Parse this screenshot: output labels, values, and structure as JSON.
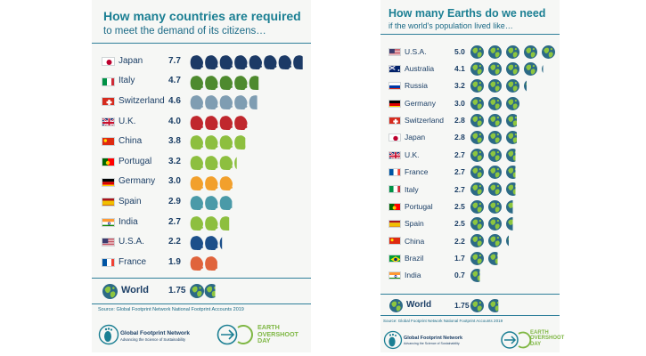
{
  "colors": {
    "title": "#1b7f93",
    "text": "#1c3f66",
    "earth_ocean": "#2c6a86",
    "earth_land": "#8dc63f",
    "teal": "#1b7f93",
    "green": "#7fb744"
  },
  "chart_data": [
    {
      "type": "bar",
      "title": "How many countries are required",
      "subtitle": "to meet the demand of its citizens…",
      "unit": "countries",
      "categories": [
        "Japan",
        "Italy",
        "Switzerland",
        "U.K.",
        "China",
        "Portugal",
        "Germany",
        "Spain",
        "India",
        "U.S.A.",
        "France"
      ],
      "values": [
        7.7,
        4.7,
        4.6,
        4.0,
        3.8,
        3.2,
        3.0,
        2.9,
        2.7,
        2.2,
        1.9
      ],
      "value_labels": [
        "7.7",
        "4.7",
        "4.6",
        "4.0",
        "3.8",
        "3.2",
        "3.0",
        "2.9",
        "2.7",
        "2.2",
        "1.9"
      ],
      "icon_colors": [
        "#1c3a66",
        "#4e8a2e",
        "#7f9db2",
        "#c0272d",
        "#8dbf3f",
        "#8dbf3f",
        "#f2a02c",
        "#4a9aa8",
        "#8dbf3f",
        "#1c4f8a",
        "#e0643c"
      ],
      "flags": [
        "japan-flag",
        "italy-flag",
        "switzerland-flag",
        "uk-flag",
        "china-flag",
        "portugal-flag",
        "germany-flag",
        "spain-flag",
        "india-flag",
        "usa-flag",
        "france-flag"
      ],
      "world": {
        "label": "World",
        "value": 1.75,
        "value_label": "1.75"
      },
      "source": "Source: Global Footprint Network National Footprint Accounts 2019"
    },
    {
      "type": "bar",
      "title": "How many Earths do we need",
      "subtitle": "if the world's population lived like…",
      "unit": "Earths",
      "categories": [
        "U.S.A.",
        "Australia",
        "Russia",
        "Germany",
        "Switzerland",
        "Japan",
        "U.K.",
        "France",
        "Italy",
        "Portugal",
        "Spain",
        "China",
        "Brazil",
        "India"
      ],
      "values": [
        5.0,
        4.1,
        3.2,
        3.0,
        2.8,
        2.8,
        2.7,
        2.7,
        2.7,
        2.5,
        2.5,
        2.2,
        1.7,
        0.7
      ],
      "value_labels": [
        "5.0",
        "4.1",
        "3.2",
        "3.0",
        "2.8",
        "2.8",
        "2.7",
        "2.7",
        "2.7",
        "2.5",
        "2.5",
        "2.2",
        "1.7",
        "0.7"
      ],
      "flags": [
        "usa-flag",
        "australia-flag",
        "russia-flag",
        "germany-flag",
        "switzerland-flag",
        "japan-flag",
        "uk-flag",
        "france-flag",
        "italy-flag",
        "portugal-flag",
        "spain-flag",
        "china-flag",
        "brazil-flag",
        "india-flag"
      ],
      "world": {
        "label": "World",
        "value": 1.75,
        "value_label": "1.75"
      },
      "source": "Source: Global Footprint Network National Footprint Accounts 2019"
    }
  ],
  "logos": {
    "gfn_name": "Global Footprint Network",
    "gfn_tagline": "Advancing the Science of Sustainability",
    "eo_text": "EARTH\nOVERSHOOT\nDAY"
  }
}
